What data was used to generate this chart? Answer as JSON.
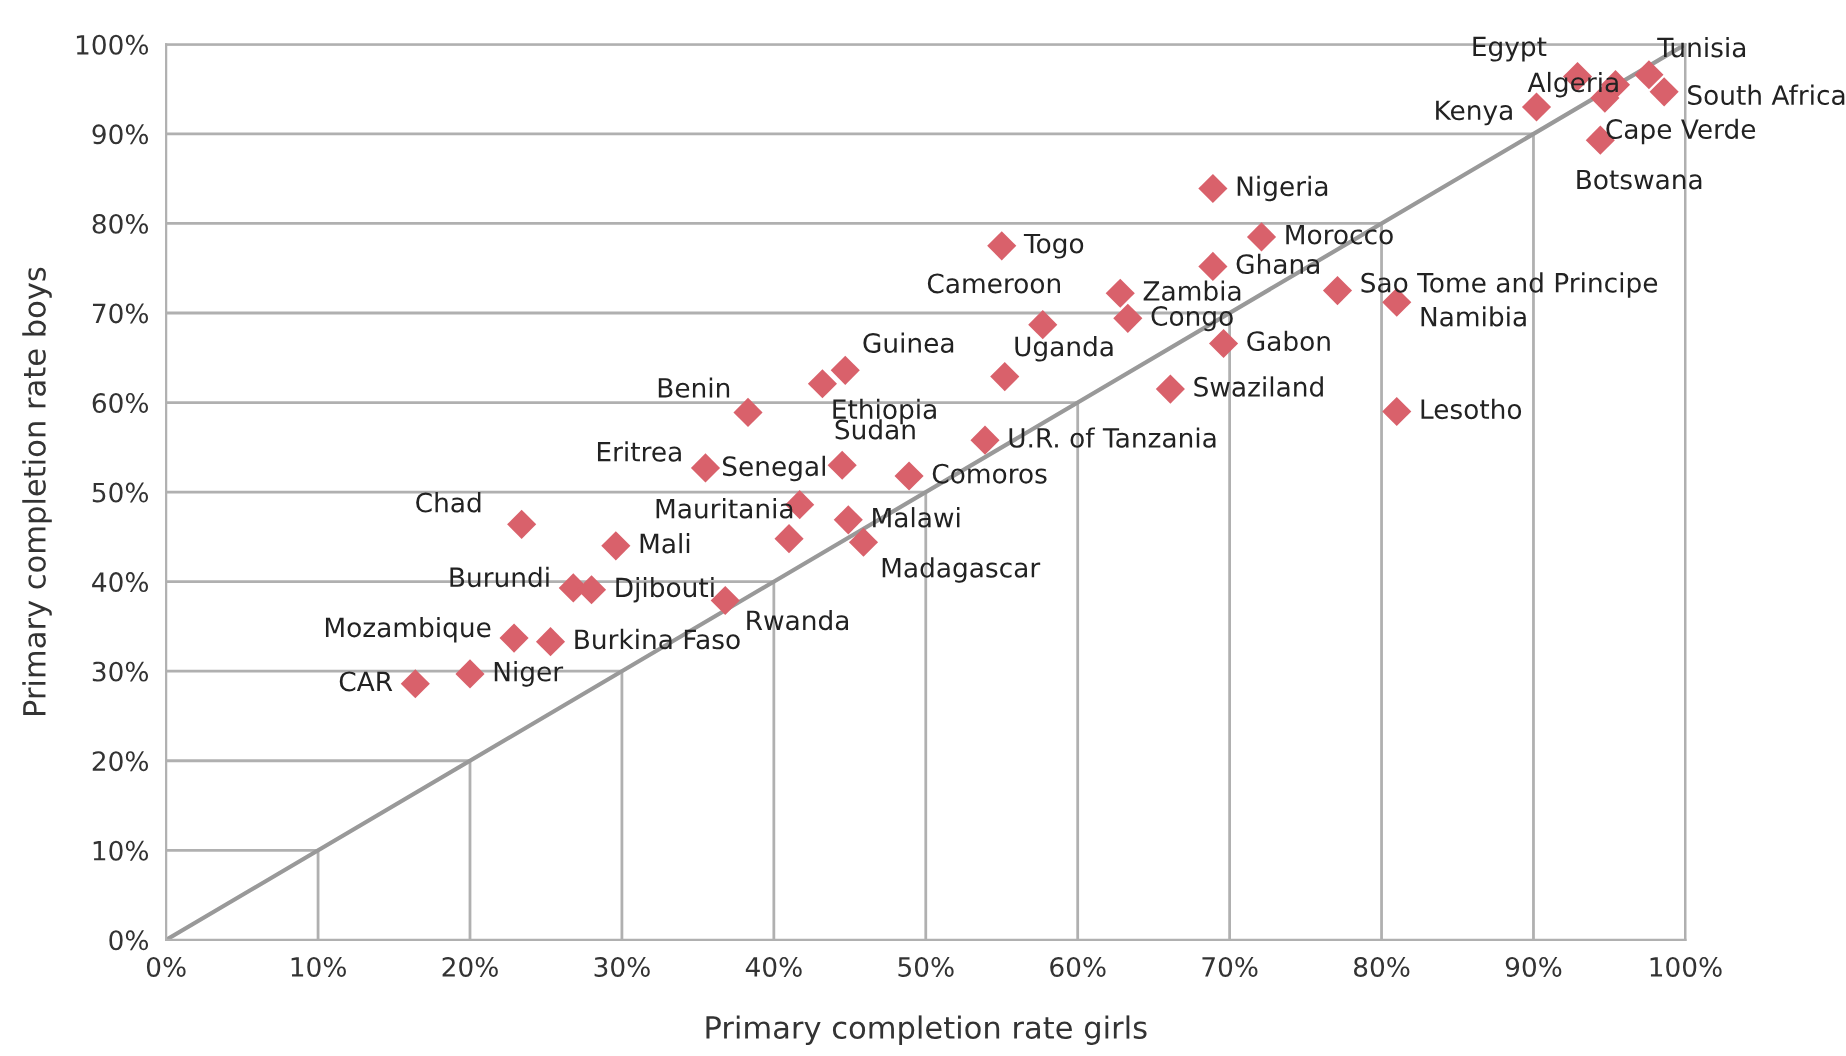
{
  "chart_data": {
    "type": "scatter",
    "xlabel": "Primary completion rate girls",
    "ylabel": "Primary completion rate boys",
    "xlim": [
      0,
      100
    ],
    "ylim": [
      0,
      100
    ],
    "xticks": [
      {
        "value": 0,
        "label": "0%"
      },
      {
        "value": 10,
        "label": "10%"
      },
      {
        "value": 20,
        "label": "20%"
      },
      {
        "value": 30,
        "label": "30%"
      },
      {
        "value": 40,
        "label": "40%"
      },
      {
        "value": 50,
        "label": "50%"
      },
      {
        "value": 60,
        "label": "60%"
      },
      {
        "value": 70,
        "label": "70%"
      },
      {
        "value": 80,
        "label": "80%"
      },
      {
        "value": 90,
        "label": "90%"
      },
      {
        "value": 100,
        "label": "100%"
      }
    ],
    "yticks": [
      {
        "value": 0,
        "label": "0%"
      },
      {
        "value": 10,
        "label": "10%"
      },
      {
        "value": 20,
        "label": "20%"
      },
      {
        "value": 30,
        "label": "30%"
      },
      {
        "value": 40,
        "label": "40%"
      },
      {
        "value": 50,
        "label": "50%"
      },
      {
        "value": 60,
        "label": "60%"
      },
      {
        "value": 70,
        "label": "70%"
      },
      {
        "value": 80,
        "label": "80%"
      },
      {
        "value": 90,
        "label": "90%"
      },
      {
        "value": 100,
        "label": "100%"
      }
    ],
    "grid": true,
    "legend": false,
    "series": [
      {
        "type": "line",
        "color": "#999999",
        "x": [
          0,
          100
        ],
        "values": [
          0,
          100
        ]
      },
      {
        "marker": "diamond",
        "color": "#d9616b",
        "x": [
          16.4,
          20.0,
          22.9,
          25.3,
          26.8,
          28.0,
          23.4,
          29.6,
          36.8,
          35.5,
          38.3,
          41.0,
          41.7,
          44.5,
          44.9,
          45.9,
          48.9,
          43.2,
          44.7,
          55.2,
          53.9,
          57.7,
          55.0,
          62.8,
          63.3,
          66.1,
          69.6,
          68.9,
          68.9,
          72.1,
          77.1,
          81.0,
          81.0,
          94.4,
          90.2,
          92.9,
          95.4,
          94.7,
          97.6,
          98.6
        ],
        "values": [
          28.6,
          29.7,
          33.7,
          33.3,
          39.3,
          39.1,
          46.4,
          44.0,
          37.9,
          52.7,
          58.9,
          44.8,
          48.6,
          53.0,
          46.9,
          44.4,
          51.8,
          62.1,
          63.6,
          62.9,
          55.8,
          68.7,
          77.5,
          72.2,
          69.4,
          61.5,
          66.6,
          75.2,
          83.9,
          78.5,
          72.5,
          71.2,
          59.0,
          89.3,
          93.0,
          96.4,
          95.5,
          94.0,
          96.6,
          94.7
        ]
      }
    ],
    "annotations": [
      {
        "text": "CAR",
        "x": 16.4,
        "y": 28.6
      },
      {
        "text": "Niger",
        "x": 20.0,
        "y": 29.7
      },
      {
        "text": "Mozambique",
        "x": 22.9,
        "y": 33.7
      },
      {
        "text": "Burkina Faso",
        "x": 25.3,
        "y": 33.3
      },
      {
        "text": "Burundi",
        "x": 26.8,
        "y": 39.3
      },
      {
        "text": "Djibouti",
        "x": 28.0,
        "y": 39.1
      },
      {
        "text": "Chad",
        "x": 23.4,
        "y": 46.4
      },
      {
        "text": "Mali",
        "x": 29.6,
        "y": 44.0
      },
      {
        "text": "Rwanda",
        "x": 36.8,
        "y": 37.9
      },
      {
        "text": "Eritrea",
        "x": 35.5,
        "y": 52.7
      },
      {
        "text": "Benin",
        "x": 38.3,
        "y": 58.9
      },
      {
        "text": "Mauritania",
        "x": 41.0,
        "y": 44.8
      },
      {
        "text": "Senegal",
        "x": 41.7,
        "y": 48.6
      },
      {
        "text": "Sudan",
        "x": 44.5,
        "y": 53.0
      },
      {
        "text": "Malawi",
        "x": 44.9,
        "y": 46.9
      },
      {
        "text": "Madagascar",
        "x": 45.9,
        "y": 44.4
      },
      {
        "text": "Comoros",
        "x": 48.9,
        "y": 51.8
      },
      {
        "text": "Ethiopia",
        "x": 43.2,
        "y": 62.1
      },
      {
        "text": "Guinea",
        "x": 44.7,
        "y": 63.6
      },
      {
        "text": "Uganda",
        "x": 55.2,
        "y": 62.9
      },
      {
        "text": "U.R. of Tanzania",
        "x": 53.9,
        "y": 55.8
      },
      {
        "text": "Cameroon",
        "x": 57.7,
        "y": 68.7
      },
      {
        "text": "Togo",
        "x": 55.0,
        "y": 77.5
      },
      {
        "text": "Zambia",
        "x": 62.8,
        "y": 72.2
      },
      {
        "text": "Congo",
        "x": 63.3,
        "y": 69.4
      },
      {
        "text": "Swaziland",
        "x": 66.1,
        "y": 61.5
      },
      {
        "text": "Gabon",
        "x": 69.6,
        "y": 66.6
      },
      {
        "text": "Ghana",
        "x": 68.9,
        "y": 75.2
      },
      {
        "text": "Nigeria",
        "x": 68.9,
        "y": 83.9
      },
      {
        "text": "Morocco",
        "x": 72.1,
        "y": 78.5
      },
      {
        "text": "Sao Tome and Principe",
        "x": 77.1,
        "y": 72.5
      },
      {
        "text": "Namibia",
        "x": 81.0,
        "y": 71.2
      },
      {
        "text": "Lesotho",
        "x": 81.0,
        "y": 59.0
      },
      {
        "text": "Botswana",
        "x": 94.4,
        "y": 89.3
      },
      {
        "text": "Kenya",
        "x": 90.2,
        "y": 93.0
      },
      {
        "text": "Egypt",
        "x": 92.9,
        "y": 96.4
      },
      {
        "text": "Algeria",
        "x": 95.4,
        "y": 95.5
      },
      {
        "text": "Cape Verde",
        "x": 94.7,
        "y": 94.0
      },
      {
        "text": "Tunisia",
        "x": 97.6,
        "y": 96.6
      },
      {
        "text": "South Africa",
        "x": 98.6,
        "y": 94.7
      }
    ]
  }
}
